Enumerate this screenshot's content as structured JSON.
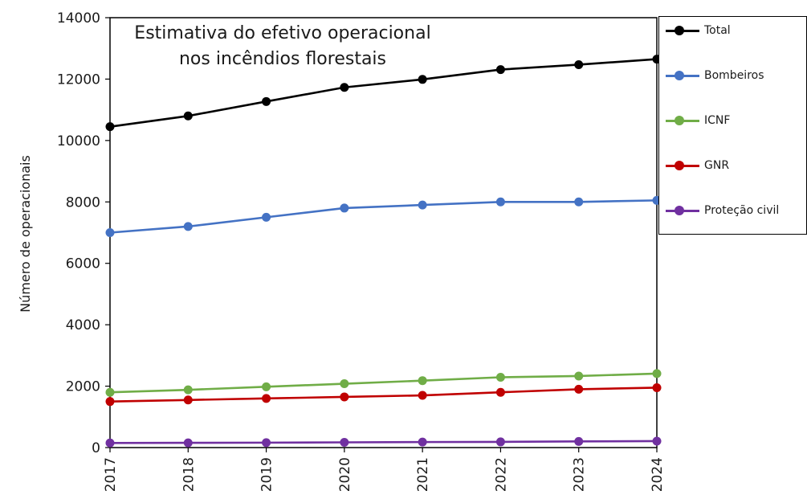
{
  "chart_data": {
    "type": "line",
    "title_lines": [
      "Estimativa do efetivo operacional",
      "nos incêndios florestais"
    ],
    "xlabel": "",
    "ylabel": "Número de operacionais",
    "categories": [
      "2017",
      "2018",
      "2019",
      "2020",
      "2021",
      "2022",
      "2023",
      "2024"
    ],
    "ylim": [
      0,
      14000
    ],
    "yticks": [
      "0",
      "2000",
      "4000",
      "6000",
      "8000",
      "10000",
      "12000",
      "14000"
    ],
    "grid": false,
    "legend_position": "right",
    "series": [
      {
        "name": "Total",
        "color": "#000000",
        "values": [
          10450,
          10800,
          11270,
          11730,
          11990,
          12310,
          12470,
          12650
        ]
      },
      {
        "name": "Bombeiros",
        "color": "#4472C4",
        "values": [
          7000,
          7200,
          7500,
          7800,
          7900,
          8000,
          8000,
          8050
        ]
      },
      {
        "name": "ICNF",
        "color": "#70AD47",
        "values": [
          1800,
          1880,
          1980,
          2080,
          2180,
          2290,
          2330,
          2410
        ]
      },
      {
        "name": "GNR",
        "color": "#C00000",
        "values": [
          1500,
          1550,
          1600,
          1650,
          1700,
          1800,
          1900,
          1950
        ]
      },
      {
        "name": "Proteção civil",
        "color": "#7030A0",
        "values": [
          150,
          155,
          160,
          170,
          180,
          185,
          200,
          210
        ]
      }
    ]
  }
}
